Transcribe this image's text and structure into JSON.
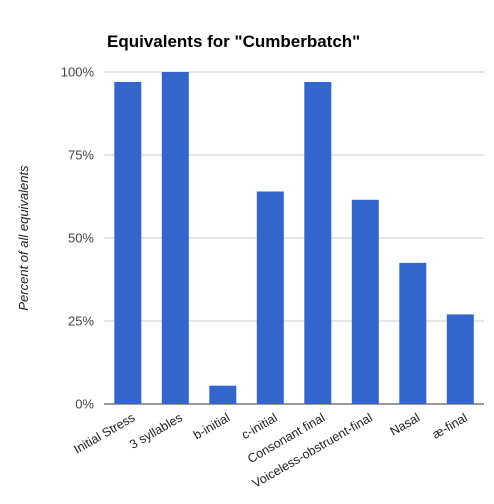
{
  "chart_data": {
    "type": "bar",
    "title": "Equivalents for \"Cumberbatch\"",
    "xlabel": "",
    "ylabel": "Percent of all equivalents",
    "categories": [
      "Initial Stress",
      "3 syllables",
      "b-initial",
      "c-initial",
      "Consonant final",
      "Voiceless-obstruent-final",
      "Nasal",
      "æ-final"
    ],
    "values": [
      97,
      100,
      5.5,
      64,
      97,
      61.5,
      42.5,
      27
    ],
    "ylim": [
      0,
      100
    ],
    "yticks": [
      0,
      25,
      50,
      75,
      100
    ],
    "ytick_labels": [
      "0%",
      "25%",
      "50%",
      "75%",
      "100%"
    ],
    "grid": true,
    "legend": "none",
    "colors": {
      "bar": "#3366cc",
      "grid": "#cccccc",
      "axis": "#333333"
    }
  }
}
